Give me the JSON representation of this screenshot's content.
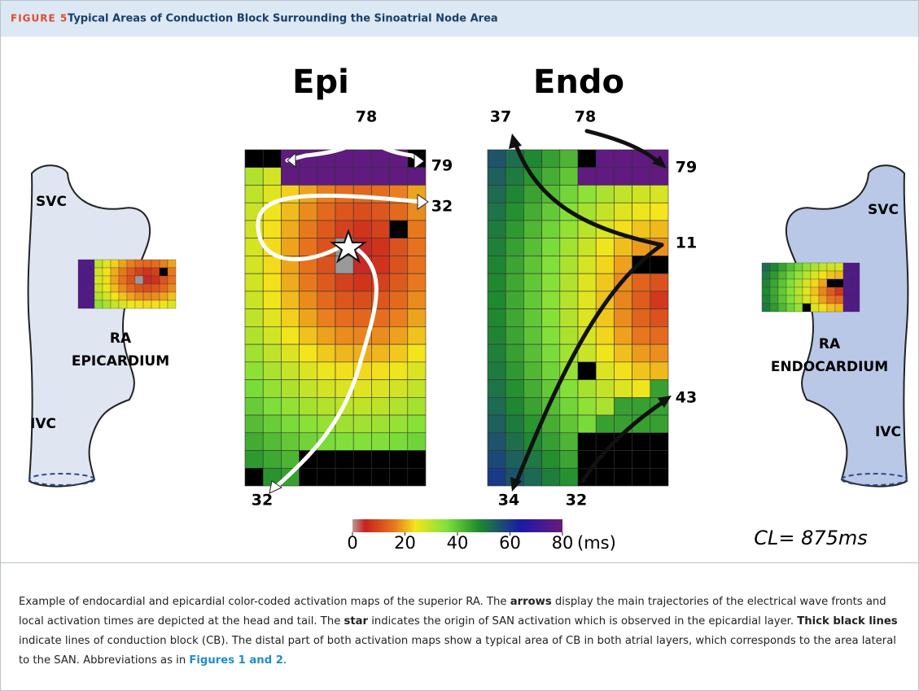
{
  "header": {
    "figure_label": "FIGURE 5",
    "title": "Typical Areas of Conduction Block Surrounding the Sinoatrial Node Area"
  },
  "panels": {
    "epi": {
      "label": "Epi",
      "annotations": [
        78,
        79,
        32,
        32
      ]
    },
    "endo": {
      "label": "Endo",
      "annotations": [
        37,
        78,
        79,
        11,
        43,
        34,
        32
      ]
    }
  },
  "colorbar": {
    "ticks": [
      0,
      20,
      40,
      60,
      80
    ],
    "unit": "(ms)"
  },
  "cycle_length": "CL= 875ms",
  "left_atrium": {
    "top": "SVC",
    "label_1": "RA",
    "label_2": "EPICARDIUM",
    "bottom": "IVC"
  },
  "right_atrium": {
    "top": "SVC",
    "label_1": "RA",
    "label_2": "ENDOCARDIUM",
    "bottom": "IVC"
  },
  "caption": {
    "segments": [
      {
        "text": "Example of endocardial and epicardial color-coded activation maps of the superior RA. The ",
        "style": "normal"
      },
      {
        "text": "arrows",
        "style": "bold"
      },
      {
        "text": " display the main trajectories of the electrical wave fronts and local activation times are depicted at the head and tail. The ",
        "style": "normal"
      },
      {
        "text": "star",
        "style": "bold"
      },
      {
        "text": " indicates the origin of SAN activation which is observed in the epicardial layer. ",
        "style": "normal"
      },
      {
        "text": "Thick black lines",
        "style": "bold"
      },
      {
        "text": " indicate lines of conduction block (CB). The distal part of both activation maps show a typical area of CB in both atrial layers, which corresponds to the area lateral to the SAN. Abbreviations as in ",
        "style": "normal"
      },
      {
        "text": "Figures 1 and 2",
        "style": "link"
      },
      {
        "text": ".",
        "style": "normal"
      }
    ]
  }
}
